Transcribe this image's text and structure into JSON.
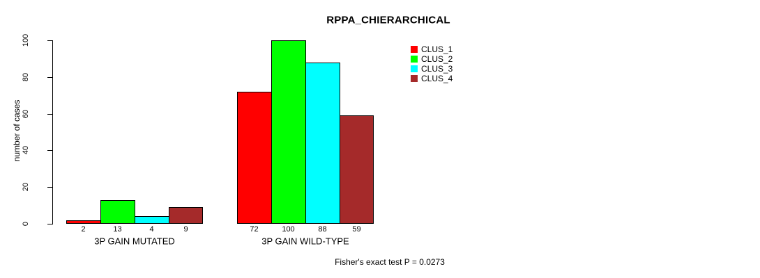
{
  "chart_data": {
    "type": "bar",
    "title": "RPPA_CHIERARCHICAL",
    "ylabel": "number of cases",
    "xlabel": "",
    "ylim": [
      0,
      100
    ],
    "yticks": [
      0,
      20,
      40,
      60,
      80,
      100
    ],
    "categories": [
      "3P GAIN MUTATED",
      "3P GAIN WILD-TYPE"
    ],
    "series": [
      {
        "name": "CLUS_1",
        "color": "#FF0000",
        "values": [
          2,
          72
        ]
      },
      {
        "name": "CLUS_2",
        "color": "#00FF00",
        "values": [
          13,
          100
        ]
      },
      {
        "name": "CLUS_3",
        "color": "#00FFFF",
        "values": [
          4,
          88
        ]
      },
      {
        "name": "CLUS_4",
        "color": "#A52A2A",
        "values": [
          9,
          59
        ]
      }
    ],
    "bar_value_labels": true,
    "legend_position": "top-right",
    "grid": false,
    "annotation": "Fisher's exact test P = 0.0273",
    "axis_color": "#000000",
    "text_color": "#000000",
    "background_color": "#FFFFFF"
  }
}
